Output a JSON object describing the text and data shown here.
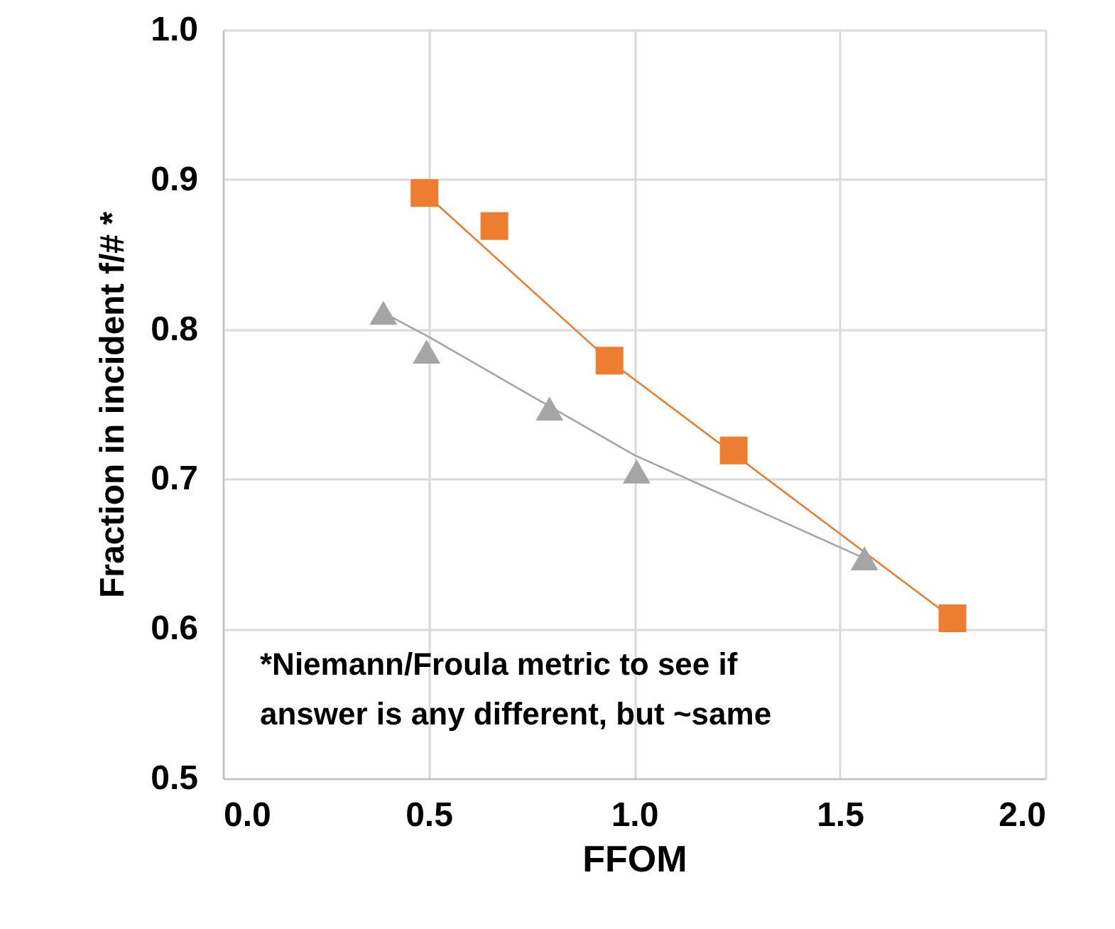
{
  "chart_data": {
    "type": "scatter",
    "xlabel": "FFOM",
    "ylabel": "Fraction in incident f/# *",
    "xlim": [
      0,
      2
    ],
    "xticks": [
      {
        "value": 0,
        "label": "0.0"
      },
      {
        "value": 0.5,
        "label": "0.5"
      },
      {
        "value": 1,
        "label": "1.0"
      },
      {
        "value": 1.5,
        "label": "1.5"
      },
      {
        "value": 2,
        "label": "2.0"
      }
    ],
    "ylim": [
      0.5,
      1
    ],
    "yticks": [
      {
        "value": 0.5,
        "label": "0.5"
      },
      {
        "value": 0.6,
        "label": "0.6"
      },
      {
        "value": 0.7,
        "label": "0.7"
      },
      {
        "value": 0.8,
        "label": "0.8"
      },
      {
        "value": 0.9,
        "label": "0.9"
      },
      {
        "value": 1,
        "label": "1.0"
      }
    ],
    "grid": true,
    "series": [
      {
        "type": "line",
        "color": "#ed7d31",
        "marker": "none",
        "x": [
          0.49,
          0.94,
          1.774
        ],
        "values": [
          0.891,
          0.779,
          0.607
        ]
      },
      {
        "type": "line",
        "color": "#a5a5a5",
        "marker": "none",
        "x": [
          0.39,
          0.5,
          1.0,
          1.56
        ],
        "values": [
          0.811,
          0.795,
          0.716,
          0.647
        ]
      },
      {
        "type": "scatter",
        "color": "#ed7d31",
        "marker": "square",
        "x": [
          0.49,
          0.94,
          1.774
        ],
        "values": [
          0.891,
          0.779,
          0.607
        ]
      },
      {
        "type": "scatter",
        "color": "#ed7d31",
        "marker": "square",
        "x": [
          0.66,
          1.242
        ],
        "values": [
          0.869,
          0.719
        ]
      },
      {
        "type": "scatter",
        "color": "#a5a5a5",
        "marker": "triangle",
        "x": [
          0.39,
          0.794,
          1.56
        ],
        "values": [
          0.811,
          0.747,
          0.647
        ]
      },
      {
        "type": "scatter",
        "color": "#a5a5a5",
        "marker": "triangle",
        "x": [
          0.495,
          1.006
        ],
        "values": [
          0.785,
          0.705
        ]
      }
    ],
    "annotations": [
      "*Niemann/Froula metric to see if",
      "answer is any different, but ~same"
    ]
  }
}
